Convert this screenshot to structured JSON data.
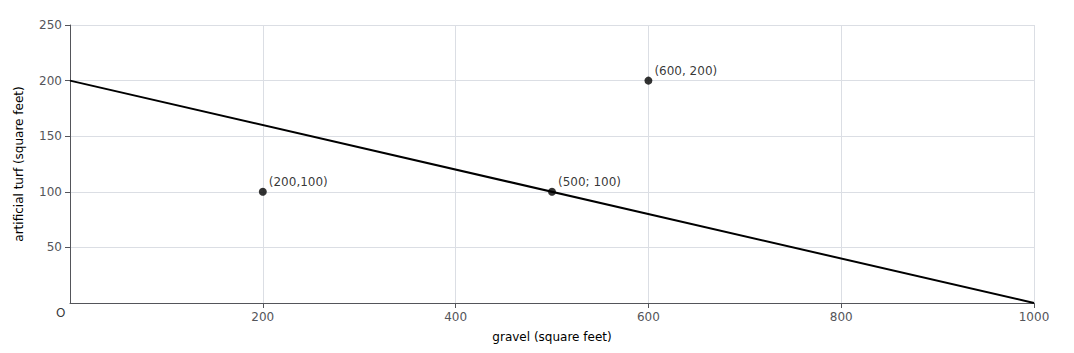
{
  "chart_data": {
    "type": "line",
    "xlabel": "gravel (square feet)",
    "ylabel": "artificial turf (square feet)",
    "xlim": [
      0,
      1000
    ],
    "ylim": [
      0,
      250
    ],
    "xticks": [
      200,
      400,
      600,
      800,
      1000
    ],
    "yticks": [
      50,
      100,
      150,
      200,
      250
    ],
    "grid": true,
    "series": [
      {
        "type": "line",
        "x": [
          0,
          1000
        ],
        "values": [
          200,
          0
        ],
        "color": "#000000"
      },
      {
        "type": "scatter",
        "x": [
          200,
          500,
          600
        ],
        "values": [
          100,
          100,
          200
        ],
        "color": "#000000"
      }
    ],
    "annotations": [
      {
        "x": 200,
        "y": 100,
        "text": "(200,100)"
      },
      {
        "x": 500,
        "y": 100,
        "text": "(500; 100)"
      },
      {
        "x": 600,
        "y": 200,
        "text": "(600, 200)"
      },
      {
        "x": 0,
        "y": 0,
        "text": "O"
      }
    ]
  }
}
